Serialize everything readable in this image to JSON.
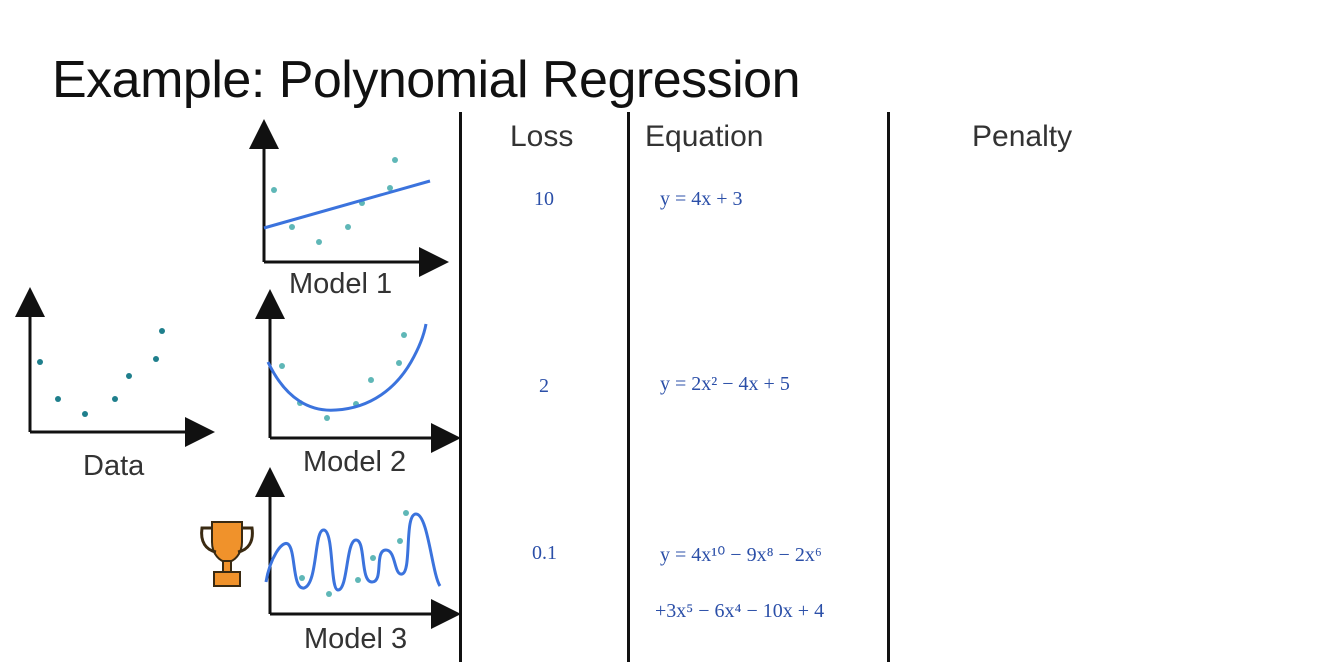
{
  "slide": {
    "title": "Example: Polynomial Regression"
  },
  "columns": {
    "loss": "Loss",
    "equation": "Equation",
    "penalty": "Penalty"
  },
  "plots": {
    "data_label": "Data",
    "model1_label": "Model 1",
    "model2_label": "Model 2",
    "model3_label": "Model 3"
  },
  "rows": [
    {
      "model": "Model 1",
      "loss": "10",
      "equation_lines": [
        "y = 4x + 3"
      ]
    },
    {
      "model": "Model 2",
      "loss": "2",
      "equation_lines": [
        "y = 2x² − 4x + 5"
      ]
    },
    {
      "model": "Model 3",
      "loss": "0.1",
      "equation_lines": [
        "y = 4x¹⁰ − 9x⁸ − 2x⁶",
        "+3x⁵ − 6x⁴ − 10x + 4"
      ]
    }
  ],
  "winner": {
    "icon": "trophy-icon",
    "model": "Model 3"
  },
  "colors": {
    "curve": "#3b73dd",
    "points": "#5fb7b7",
    "data_points": "#1f7f8c",
    "text_blue": "#2b4fa8",
    "trophy": "#f0922b"
  }
}
